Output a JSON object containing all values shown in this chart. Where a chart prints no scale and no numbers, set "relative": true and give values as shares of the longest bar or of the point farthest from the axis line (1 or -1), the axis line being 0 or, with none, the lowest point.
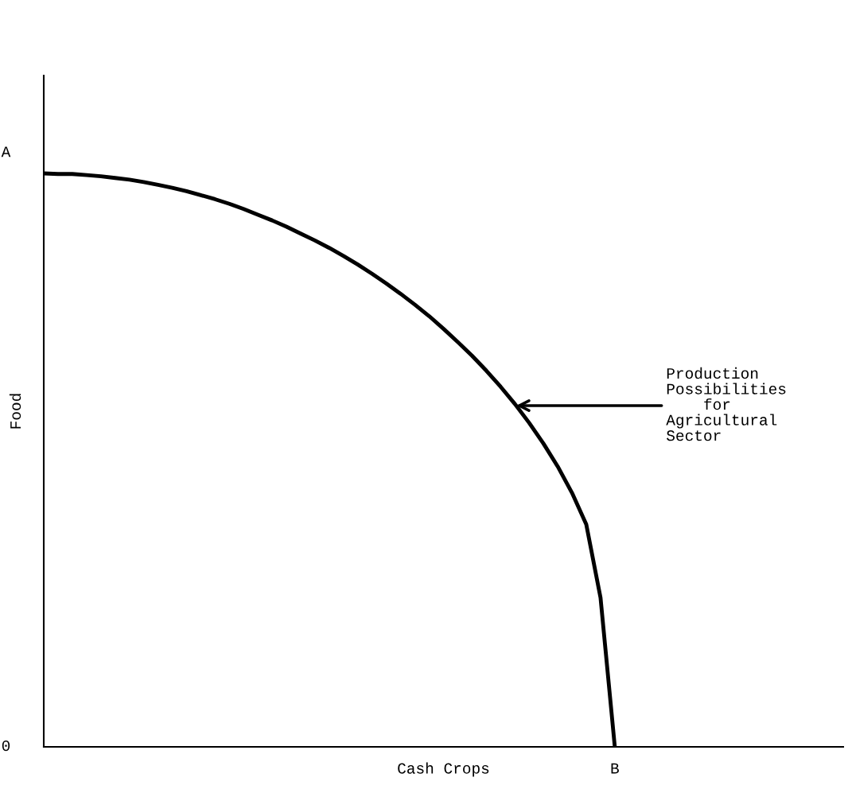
{
  "chart_data": {
    "type": "line",
    "relative": true,
    "xlabel": "Cash Crops",
    "ylabel": "Food",
    "categories": [
      null,
      null,
      null,
      null,
      null,
      null,
      null,
      null,
      null,
      null,
      null,
      null,
      null,
      null,
      null,
      null,
      null,
      null,
      null,
      null,
      null,
      null,
      null,
      null,
      null,
      null,
      null,
      null,
      null,
      null,
      null,
      null,
      null,
      null,
      null,
      null,
      null,
      null,
      null,
      null,
      null,
      null,
      null,
      null,
      null,
      null,
      null,
      null,
      null,
      null,
      null,
      null,
      null,
      null,
      null,
      null,
      null
    ],
    "series": [
      {
        "color": "#000000",
        "values": [
          1.0,
          0.999,
          0.999,
          0.997,
          0.995,
          0.992,
          0.989,
          0.985,
          0.98,
          0.975,
          0.969,
          0.962,
          0.955,
          0.947,
          0.938,
          0.928,
          0.918,
          0.907,
          0.895,
          0.883,
          0.87,
          0.856,
          0.841,
          0.825,
          0.808,
          0.79,
          0.771,
          0.751,
          0.729,
          0.706,
          0.682,
          0.656,
          0.628,
          0.598,
          0.565,
          0.529,
          0.489,
          0.443,
          0.388,
          0.26,
          0.0,
          null,
          null,
          null,
          null,
          null,
          null,
          null,
          null,
          null,
          null,
          null,
          null,
          null,
          null,
          null,
          null
        ]
      }
    ],
    "annotations": [
      "0",
      "A",
      "B",
      "Production\nPossibilities\n    for\nAgricultural\nSector"
    ],
    "legend": false,
    "marker": "none",
    "line_style": "solid"
  }
}
